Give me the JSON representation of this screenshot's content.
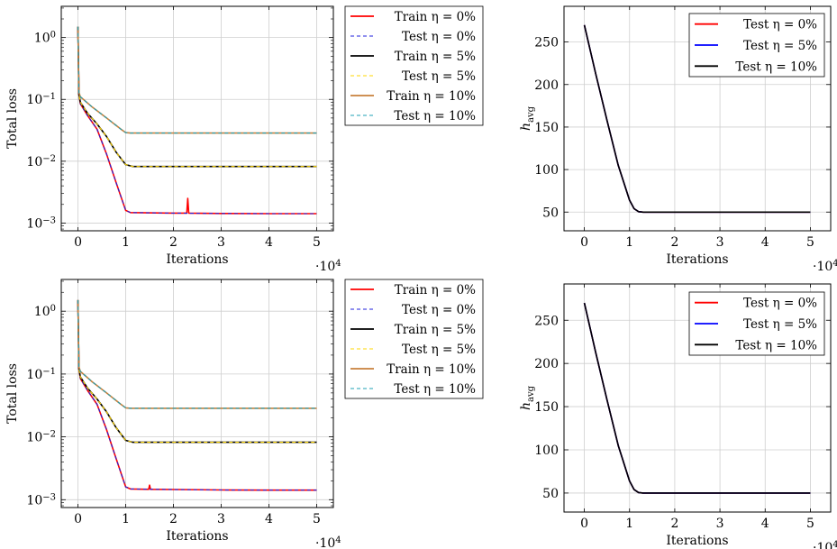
{
  "chart_data": [
    {
      "type": "line",
      "yscale": "log",
      "xlabel": "Iterations",
      "ylabel": "Total loss",
      "x_multiplier": "·10^4",
      "xlim": [
        -0.35,
        5.35
      ],
      "ylim": [
        0.00075,
        3.2
      ],
      "xticks": [
        0,
        1,
        2,
        3,
        4,
        5
      ],
      "yticks": [
        {
          "v": 0.001,
          "label": "10^-3"
        },
        {
          "v": 0.01,
          "label": "10^-2"
        },
        {
          "v": 0.1,
          "label": "10^-1"
        },
        {
          "v": 1,
          "label": "10^0"
        }
      ],
      "grid": true,
      "legend_position": "outside-right",
      "series": [
        {
          "name": "Train η = 0%",
          "color": "#ff0000",
          "style": "solid",
          "x": [
            0,
            0.02,
            0.05,
            0.2,
            0.4,
            0.6,
            0.8,
            1.0,
            1.1,
            2.0,
            2.28,
            2.3,
            2.32,
            3.0,
            4.0,
            5.0
          ],
          "y": [
            1.5,
            0.12,
            0.085,
            0.055,
            0.033,
            0.013,
            0.0045,
            0.0016,
            0.00148,
            0.00145,
            0.00145,
            0.0025,
            0.00145,
            0.00143,
            0.00142,
            0.00142
          ]
        },
        {
          "name": "Test η = 0%",
          "color": "#2222dd",
          "style": "dashed",
          "x": [
            0,
            0.02,
            0.05,
            0.2,
            0.4,
            0.6,
            0.8,
            1.0,
            1.1,
            2.0,
            3.0,
            4.0,
            5.0
          ],
          "y": [
            1.5,
            0.12,
            0.085,
            0.055,
            0.033,
            0.013,
            0.0045,
            0.0016,
            0.00148,
            0.00145,
            0.00143,
            0.00142,
            0.00142
          ]
        },
        {
          "name": "Train η = 5%",
          "color": "#000000",
          "style": "solid",
          "x": [
            0,
            0.02,
            0.05,
            0.2,
            0.4,
            0.6,
            0.8,
            1.0,
            1.15,
            2.0,
            3.0,
            4.0,
            5.0
          ],
          "y": [
            1.5,
            0.12,
            0.09,
            0.06,
            0.04,
            0.025,
            0.014,
            0.0088,
            0.0082,
            0.0082,
            0.0082,
            0.0082,
            0.0082
          ]
        },
        {
          "name": "Test η = 5%",
          "color": "#ffd700",
          "style": "dashed",
          "x": [
            0,
            0.02,
            0.05,
            0.2,
            0.4,
            0.6,
            0.8,
            1.0,
            1.15,
            2.0,
            3.0,
            4.0,
            5.0
          ],
          "y": [
            1.5,
            0.12,
            0.09,
            0.06,
            0.04,
            0.025,
            0.014,
            0.0088,
            0.0082,
            0.0082,
            0.0082,
            0.0082,
            0.0082
          ]
        },
        {
          "name": "Train η = 10%",
          "color": "#c8803c",
          "style": "solid",
          "x": [
            0,
            0.02,
            0.05,
            0.3,
            0.6,
            0.9,
            1.0,
            1.1,
            2.0,
            3.0,
            4.0,
            5.0
          ],
          "y": [
            1.5,
            0.13,
            0.11,
            0.075,
            0.05,
            0.033,
            0.029,
            0.0285,
            0.0285,
            0.0285,
            0.0285,
            0.0285
          ]
        },
        {
          "name": "Test η = 10%",
          "color": "#1fa0b5",
          "style": "dashed",
          "x": [
            0,
            0.02,
            0.05,
            0.3,
            0.6,
            0.9,
            1.0,
            1.1,
            2.0,
            3.0,
            4.0,
            5.0
          ],
          "y": [
            1.5,
            0.13,
            0.11,
            0.075,
            0.05,
            0.033,
            0.029,
            0.0285,
            0.0285,
            0.0285,
            0.0285,
            0.0285
          ]
        }
      ]
    },
    {
      "type": "line",
      "yscale": "linear",
      "xlabel": "Iterations",
      "ylabel": "h_avg",
      "x_multiplier": "·10^4",
      "xlim": [
        -0.45,
        5.45
      ],
      "ylim": [
        28,
        292
      ],
      "xticks": [
        0,
        1,
        2,
        3,
        4,
        5
      ],
      "yticks": [
        {
          "v": 50,
          "label": "50"
        },
        {
          "v": 100,
          "label": "100"
        },
        {
          "v": 150,
          "label": "150"
        },
        {
          "v": 200,
          "label": "200"
        },
        {
          "v": 250,
          "label": "250"
        }
      ],
      "grid": true,
      "legend_position": "top-right",
      "series": [
        {
          "name": "Test η = 0%",
          "color": "#ff0000",
          "style": "solid",
          "x": [
            0,
            0.25,
            0.5,
            0.75,
            1.0,
            1.1,
            1.2,
            1.3,
            2.0,
            3.0,
            4.0,
            5.0
          ],
          "y": [
            270,
            213,
            158,
            105,
            64,
            54,
            50.5,
            50,
            50,
            50,
            50,
            50
          ]
        },
        {
          "name": "Test η = 5%",
          "color": "#0000ff",
          "style": "solid",
          "x": [
            0,
            0.25,
            0.5,
            0.75,
            1.0,
            1.1,
            1.2,
            1.3,
            2.0,
            3.0,
            4.0,
            5.0
          ],
          "y": [
            270,
            213,
            158,
            105,
            64,
            54,
            50.5,
            50,
            50,
            50,
            50,
            50
          ]
        },
        {
          "name": "Test η = 10%",
          "color": "#000000",
          "style": "solid",
          "x": [
            0,
            0.25,
            0.5,
            0.75,
            1.0,
            1.1,
            1.2,
            1.3,
            2.0,
            3.0,
            4.0,
            5.0
          ],
          "y": [
            270,
            213,
            158,
            105,
            64,
            54,
            50.5,
            50,
            50,
            50,
            50,
            50
          ]
        }
      ]
    },
    {
      "type": "line",
      "yscale": "log",
      "xlabel": "Iterations",
      "ylabel": "Total loss",
      "x_multiplier": "·10^4",
      "xlim": [
        -0.35,
        5.35
      ],
      "ylim": [
        0.00075,
        3.2
      ],
      "xticks": [
        0,
        1,
        2,
        3,
        4,
        5
      ],
      "yticks": [
        {
          "v": 0.001,
          "label": "10^-3"
        },
        {
          "v": 0.01,
          "label": "10^-2"
        },
        {
          "v": 0.1,
          "label": "10^-1"
        },
        {
          "v": 1,
          "label": "10^0"
        }
      ],
      "grid": true,
      "legend_position": "outside-right",
      "series": [
        {
          "name": "Train η = 0%",
          "color": "#ff0000",
          "style": "solid",
          "x": [
            0,
            0.02,
            0.05,
            0.2,
            0.4,
            0.6,
            0.8,
            1.0,
            1.1,
            1.48,
            1.5,
            1.52,
            2.0,
            3.0,
            4.0,
            5.0
          ],
          "y": [
            1.5,
            0.12,
            0.085,
            0.055,
            0.033,
            0.013,
            0.0045,
            0.0016,
            0.00148,
            0.00146,
            0.0017,
            0.00146,
            0.00145,
            0.00143,
            0.00142,
            0.00142
          ]
        },
        {
          "name": "Test η = 0%",
          "color": "#2222dd",
          "style": "dashed",
          "x": [
            0,
            0.02,
            0.05,
            0.2,
            0.4,
            0.6,
            0.8,
            1.0,
            1.1,
            2.0,
            3.0,
            4.0,
            5.0
          ],
          "y": [
            1.5,
            0.12,
            0.085,
            0.055,
            0.033,
            0.013,
            0.0045,
            0.0016,
            0.00148,
            0.00145,
            0.00143,
            0.00142,
            0.00142
          ]
        },
        {
          "name": "Train η = 5%",
          "color": "#000000",
          "style": "solid",
          "x": [
            0,
            0.02,
            0.05,
            0.2,
            0.4,
            0.6,
            0.8,
            1.0,
            1.15,
            2.0,
            3.0,
            4.0,
            5.0
          ],
          "y": [
            1.5,
            0.12,
            0.09,
            0.06,
            0.04,
            0.025,
            0.014,
            0.0088,
            0.0082,
            0.0082,
            0.0082,
            0.0082,
            0.0082
          ]
        },
        {
          "name": "Test η = 5%",
          "color": "#ffd700",
          "style": "dashed",
          "x": [
            0,
            0.02,
            0.05,
            0.2,
            0.4,
            0.6,
            0.8,
            1.0,
            1.15,
            2.0,
            3.0,
            4.0,
            5.0
          ],
          "y": [
            1.5,
            0.12,
            0.09,
            0.06,
            0.04,
            0.025,
            0.014,
            0.0088,
            0.0082,
            0.0082,
            0.0082,
            0.0082,
            0.0082
          ]
        },
        {
          "name": "Train η = 10%",
          "color": "#c8803c",
          "style": "solid",
          "x": [
            0,
            0.02,
            0.05,
            0.3,
            0.6,
            0.9,
            1.0,
            1.1,
            2.0,
            3.0,
            4.0,
            5.0
          ],
          "y": [
            1.5,
            0.13,
            0.11,
            0.075,
            0.05,
            0.033,
            0.029,
            0.0285,
            0.0285,
            0.0285,
            0.0285,
            0.0285
          ]
        },
        {
          "name": "Test η = 10%",
          "color": "#1fa0b5",
          "style": "dashed",
          "x": [
            0,
            0.02,
            0.05,
            0.3,
            0.6,
            0.9,
            1.0,
            1.1,
            2.0,
            3.0,
            4.0,
            5.0
          ],
          "y": [
            1.5,
            0.13,
            0.11,
            0.075,
            0.05,
            0.033,
            0.029,
            0.0285,
            0.0285,
            0.0285,
            0.0285,
            0.0285
          ]
        }
      ]
    },
    {
      "type": "line",
      "yscale": "linear",
      "xlabel": "Iterations",
      "ylabel": "h_avg",
      "x_multiplier": "·10^4",
      "xlim": [
        -0.45,
        5.45
      ],
      "ylim": [
        28,
        292
      ],
      "xticks": [
        0,
        1,
        2,
        3,
        4,
        5
      ],
      "yticks": [
        {
          "v": 50,
          "label": "50"
        },
        {
          "v": 100,
          "label": "100"
        },
        {
          "v": 150,
          "label": "150"
        },
        {
          "v": 200,
          "label": "200"
        },
        {
          "v": 250,
          "label": "250"
        }
      ],
      "grid": true,
      "legend_position": "top-right",
      "series": [
        {
          "name": "Test η = 0%",
          "color": "#ff0000",
          "style": "solid",
          "x": [
            0,
            0.25,
            0.5,
            0.75,
            1.0,
            1.1,
            1.2,
            1.3,
            2.0,
            3.0,
            4.0,
            5.0
          ],
          "y": [
            270,
            213,
            158,
            105,
            64,
            54,
            50.5,
            50,
            50,
            50,
            50,
            50
          ]
        },
        {
          "name": "Test η = 5%",
          "color": "#0000ff",
          "style": "solid",
          "x": [
            0,
            0.25,
            0.5,
            0.75,
            1.0,
            1.1,
            1.2,
            1.3,
            2.0,
            3.0,
            4.0,
            5.0
          ],
          "y": [
            270,
            213,
            158,
            105,
            64,
            54,
            50.5,
            50,
            50,
            50,
            50,
            50
          ]
        },
        {
          "name": "Test η = 10%",
          "color": "#000000",
          "style": "solid",
          "x": [
            0,
            0.25,
            0.5,
            0.75,
            1.0,
            1.1,
            1.2,
            1.3,
            2.0,
            3.0,
            4.0,
            5.0
          ],
          "y": [
            270,
            213,
            158,
            105,
            64,
            54,
            50.5,
            50,
            50,
            50,
            50,
            50
          ]
        }
      ]
    }
  ]
}
